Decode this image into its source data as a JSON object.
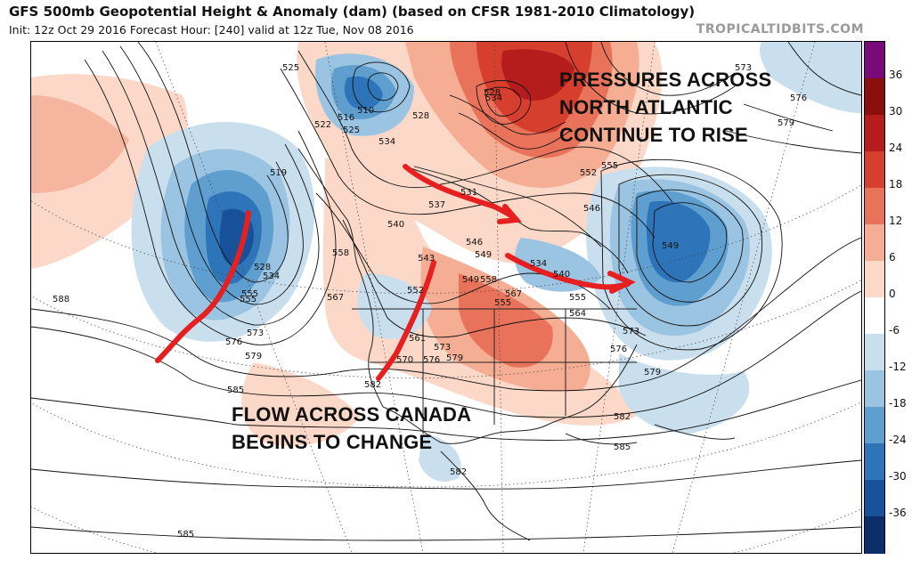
{
  "header": {
    "title": "GFS 500mb Geopotential Height & Anomaly (dam) (based on CFSR 1981-2010 Climatology)",
    "subtitle": "Init: 12z Oct 29 2016   Forecast Hour: [240]   valid at 12z Tue, Nov 08 2016",
    "brand": "TROPICALTIDBITS.COM"
  },
  "annotations": {
    "north_atlantic": "PRESSURES ACROSS\nNORTH ATLANTIC\nCONTINUE TO RISE",
    "canada": "FLOW ACROSS CANADA\nBEGINS TO CHANGE"
  },
  "colorbar": {
    "labels": [
      "36",
      "30",
      "24",
      "18",
      "12",
      "6",
      "0",
      "-6",
      "-12",
      "-18",
      "-24",
      "-30",
      "-36"
    ],
    "colors": {
      "pos_36": "#7a0a7a",
      "pos_30": "#8b0d0d",
      "pos_24": "#b51c1c",
      "pos_18": "#d63f2e",
      "pos_12": "#e9735a",
      "pos_6": "#f5ad93",
      "pos_0": "#fbd8c8",
      "neutral": "#ffffff",
      "neg_6": "#c9dfee",
      "neg_12": "#9ac4e2",
      "neg_18": "#5f9fd0",
      "neg_24": "#2e74b8",
      "neg_30": "#16519a",
      "neg_36": "#0b2e6b"
    }
  },
  "contour_labels": [
    "525",
    "516",
    "510",
    "522",
    "525",
    "528",
    "534",
    "519",
    "531",
    "537",
    "540",
    "543",
    "546",
    "549",
    "552",
    "555",
    "558",
    "561",
    "564",
    "567",
    "570",
    "573",
    "576",
    "579",
    "582",
    "585",
    "588",
    "534",
    "546",
    "549",
    "552",
    "555",
    "573",
    "576",
    "579",
    "582",
    "585",
    "534",
    "540",
    "549",
    "555",
    "558",
    "555",
    "567",
    "573",
    "576",
    "579",
    "528",
    "534",
    "528",
    "555",
    "573",
    "576",
    "579",
    "582",
    "585"
  ]
}
